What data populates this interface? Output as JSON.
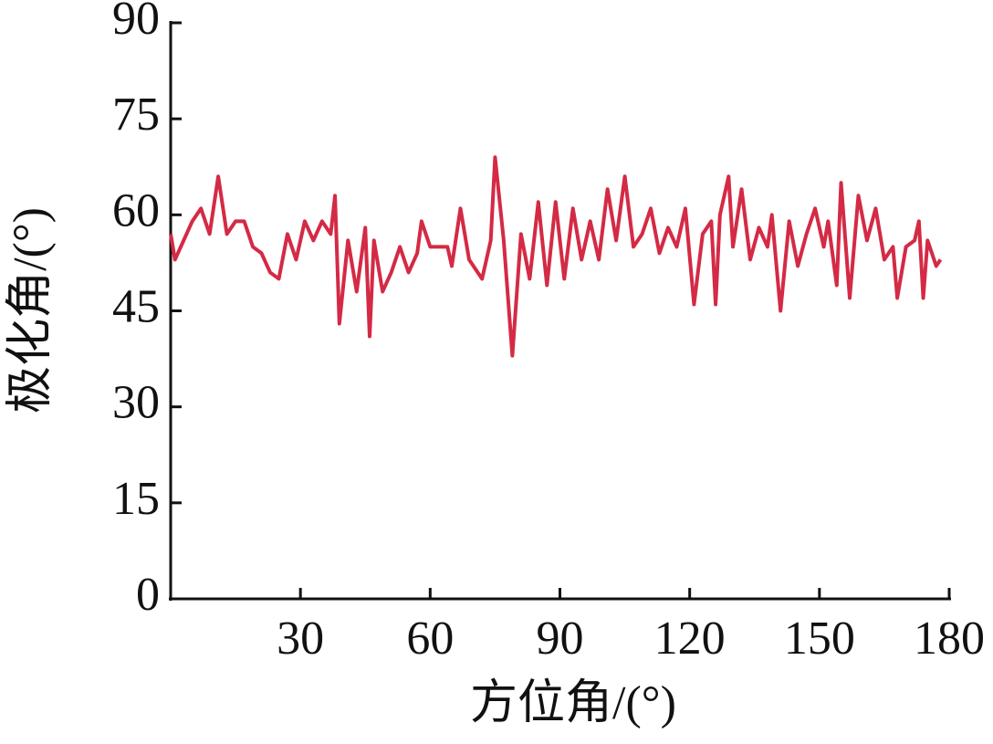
{
  "chart_data": {
    "type": "line",
    "x_label": "方位角/(°)",
    "y_label": "极化角/(°)",
    "x": [
      0,
      1,
      3,
      5,
      7,
      9,
      11,
      13,
      15,
      17,
      19,
      21,
      23,
      25,
      27,
      29,
      31,
      33,
      35,
      37,
      38,
      39,
      41,
      43,
      45,
      46,
      47,
      49,
      51,
      53,
      55,
      57,
      58,
      60,
      62,
      64,
      65,
      67,
      69,
      72,
      74,
      75,
      77,
      79,
      81,
      83,
      85,
      87,
      89,
      91,
      93,
      95,
      97,
      99,
      101,
      103,
      105,
      107,
      109,
      111,
      113,
      115,
      117,
      119,
      121,
      123,
      125,
      126,
      127,
      129,
      130,
      132,
      134,
      136,
      138,
      139,
      141,
      143,
      145,
      147,
      149,
      151,
      152,
      154,
      155,
      157,
      159,
      161,
      163,
      165,
      167,
      168,
      170,
      172,
      173,
      174,
      175,
      177,
      178
    ],
    "values": [
      57,
      53,
      56,
      59,
      61,
      57,
      66,
      57,
      59,
      59,
      55,
      54,
      51,
      50,
      57,
      53,
      59,
      56,
      59,
      57,
      63,
      43,
      56,
      48,
      58,
      41,
      56,
      48,
      51,
      55,
      51,
      54,
      59,
      55,
      55,
      55,
      52,
      61,
      53,
      50,
      56,
      69,
      56,
      38,
      57,
      50,
      62,
      49,
      62,
      50,
      61,
      53,
      59,
      53,
      64,
      56,
      66,
      55,
      57,
      61,
      54,
      58,
      55,
      61,
      46,
      57,
      59,
      46,
      60,
      66,
      55,
      64,
      53,
      58,
      55,
      60,
      45,
      59,
      52,
      57,
      61,
      55,
      59,
      49,
      65,
      47,
      63,
      56,
      61,
      53,
      55,
      47,
      55,
      56,
      59,
      47,
      56,
      52,
      53
    ],
    "color": "#d42a45",
    "xlim": [
      0,
      180
    ],
    "xticks": [
      30,
      60,
      90,
      120,
      150,
      180
    ],
    "ylim": [
      0,
      90
    ],
    "yticks": [
      0,
      15,
      30,
      45,
      60,
      75,
      90
    ]
  }
}
